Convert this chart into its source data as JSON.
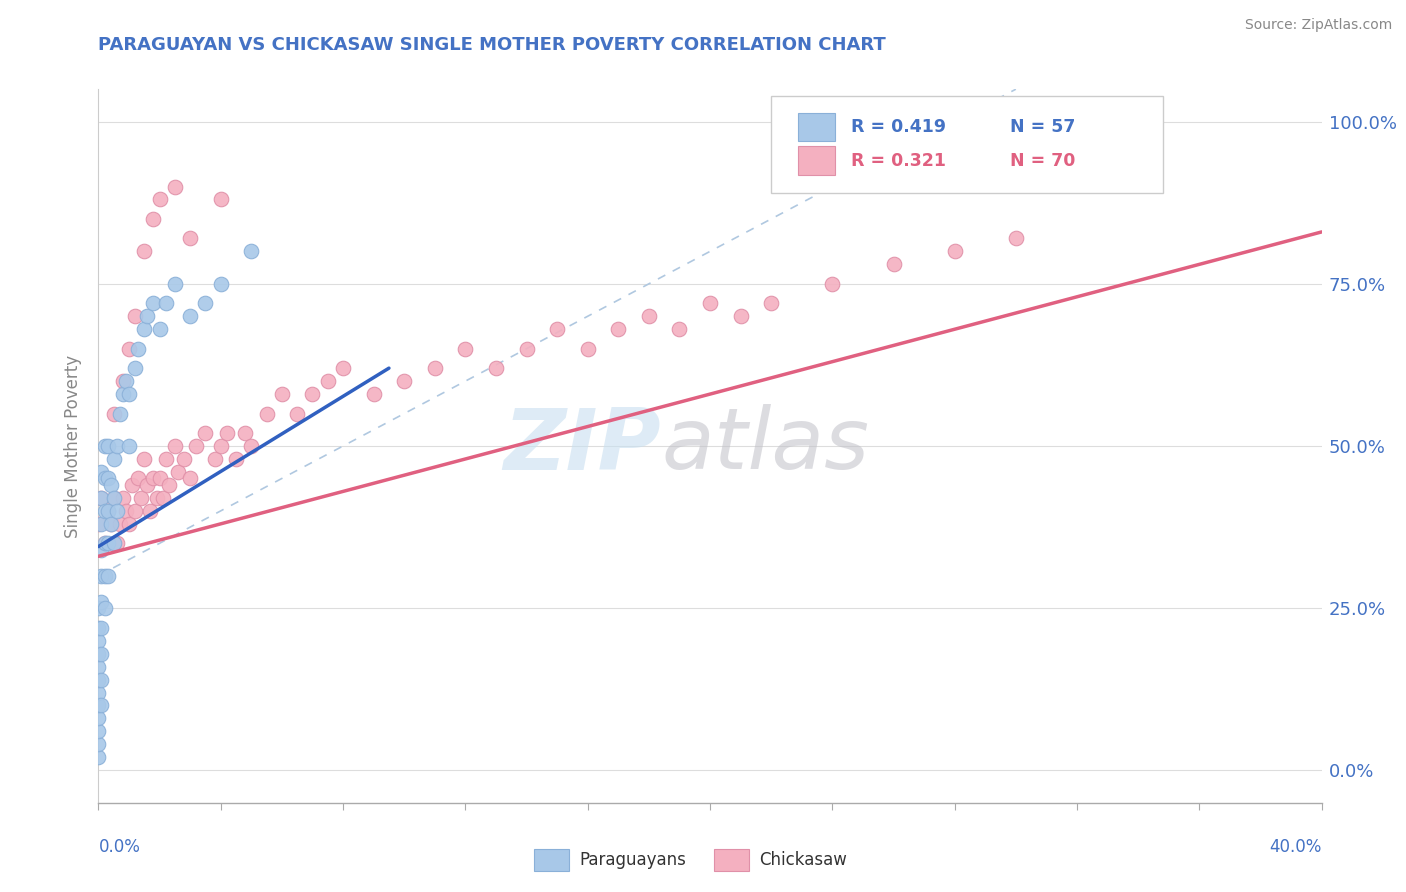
{
  "title": "PARAGUAYAN VS CHICKASAW SINGLE MOTHER POVERTY CORRELATION CHART",
  "source": "Source: ZipAtlas.com",
  "ylabel": "Single Mother Poverty",
  "right_yticks": [
    0.0,
    0.25,
    0.5,
    0.75,
    1.0
  ],
  "right_yticklabels": [
    "0.0%",
    "25.0%",
    "50.0%",
    "75.0%",
    "100.0%"
  ],
  "legend_blue_r": "R = 0.419",
  "legend_blue_n": "N = 57",
  "legend_pink_r": "R = 0.321",
  "legend_pink_n": "N = 70",
  "blue_color": "#a8c8e8",
  "pink_color": "#f4b0c0",
  "blue_line_color": "#3060c0",
  "pink_line_color": "#e06080",
  "title_color": "#4472C4",
  "axis_label_color": "#4472C4",
  "xlim": [
    0.0,
    0.4
  ],
  "ylim": [
    -0.05,
    1.05
  ],
  "blue_scatter_x": [
    0.0,
    0.0,
    0.0,
    0.0,
    0.0,
    0.0,
    0.0,
    0.0,
    0.0,
    0.0,
    0.0,
    0.0,
    0.001,
    0.001,
    0.001,
    0.001,
    0.001,
    0.001,
    0.001,
    0.001,
    0.001,
    0.001,
    0.002,
    0.002,
    0.002,
    0.002,
    0.002,
    0.002,
    0.003,
    0.003,
    0.003,
    0.003,
    0.003,
    0.004,
    0.004,
    0.005,
    0.005,
    0.005,
    0.006,
    0.006,
    0.007,
    0.008,
    0.009,
    0.01,
    0.01,
    0.012,
    0.013,
    0.015,
    0.016,
    0.018,
    0.02,
    0.022,
    0.025,
    0.03,
    0.035,
    0.04,
    0.05
  ],
  "blue_scatter_y": [
    0.02,
    0.04,
    0.06,
    0.08,
    0.1,
    0.12,
    0.14,
    0.16,
    0.18,
    0.2,
    0.22,
    0.25,
    0.1,
    0.14,
    0.18,
    0.22,
    0.26,
    0.3,
    0.34,
    0.38,
    0.42,
    0.46,
    0.25,
    0.3,
    0.35,
    0.4,
    0.45,
    0.5,
    0.3,
    0.35,
    0.4,
    0.45,
    0.5,
    0.38,
    0.44,
    0.35,
    0.42,
    0.48,
    0.4,
    0.5,
    0.55,
    0.58,
    0.6,
    0.5,
    0.58,
    0.62,
    0.65,
    0.68,
    0.7,
    0.72,
    0.68,
    0.72,
    0.75,
    0.7,
    0.72,
    0.75,
    0.8
  ],
  "pink_scatter_x": [
    0.0,
    0.001,
    0.002,
    0.003,
    0.004,
    0.005,
    0.006,
    0.007,
    0.008,
    0.009,
    0.01,
    0.011,
    0.012,
    0.013,
    0.014,
    0.015,
    0.016,
    0.017,
    0.018,
    0.019,
    0.02,
    0.021,
    0.022,
    0.023,
    0.025,
    0.026,
    0.028,
    0.03,
    0.032,
    0.035,
    0.038,
    0.04,
    0.042,
    0.045,
    0.048,
    0.05,
    0.055,
    0.06,
    0.065,
    0.07,
    0.075,
    0.08,
    0.09,
    0.1,
    0.11,
    0.12,
    0.13,
    0.14,
    0.15,
    0.16,
    0.17,
    0.18,
    0.19,
    0.2,
    0.21,
    0.22,
    0.24,
    0.26,
    0.28,
    0.3,
    0.005,
    0.008,
    0.01,
    0.012,
    0.015,
    0.018,
    0.02,
    0.025,
    0.03,
    0.04
  ],
  "pink_scatter_y": [
    0.38,
    0.42,
    0.35,
    0.4,
    0.38,
    0.42,
    0.35,
    0.38,
    0.42,
    0.4,
    0.38,
    0.44,
    0.4,
    0.45,
    0.42,
    0.48,
    0.44,
    0.4,
    0.45,
    0.42,
    0.45,
    0.42,
    0.48,
    0.44,
    0.5,
    0.46,
    0.48,
    0.45,
    0.5,
    0.52,
    0.48,
    0.5,
    0.52,
    0.48,
    0.52,
    0.5,
    0.55,
    0.58,
    0.55,
    0.58,
    0.6,
    0.62,
    0.58,
    0.6,
    0.62,
    0.65,
    0.62,
    0.65,
    0.68,
    0.65,
    0.68,
    0.7,
    0.68,
    0.72,
    0.7,
    0.72,
    0.75,
    0.78,
    0.8,
    0.82,
    0.55,
    0.6,
    0.65,
    0.7,
    0.8,
    0.85,
    0.88,
    0.9,
    0.82,
    0.88
  ],
  "blue_trend_x": [
    0.0,
    0.095
  ],
  "blue_trend_y": [
    0.345,
    0.62
  ],
  "pink_trend_x": [
    0.0,
    0.4
  ],
  "pink_trend_y": [
    0.33,
    0.83
  ]
}
